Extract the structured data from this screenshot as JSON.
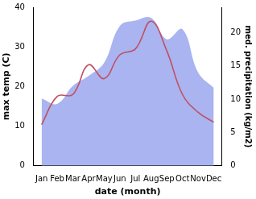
{
  "chart_data": {
    "type": "line",
    "x_label": "date (month)",
    "y_label": "max temp (C)",
    "y2_label": "med. precipitation (kg/m2)",
    "categories": [
      "Jan",
      "Feb",
      "Mar",
      "Apr",
      "May",
      "Jun",
      "Jul",
      "Aug",
      "Sep",
      "Oct",
      "Nov",
      "Dec"
    ],
    "series": [
      {
        "name": "med. precipitation",
        "type": "area",
        "axis": "y2",
        "color": "#a9b4f1",
        "values": [
          10.1,
          9.3,
          12,
          13.5,
          15.5,
          21,
          21.8,
          22.2,
          19,
          20.5,
          14,
          11.7
        ]
      },
      {
        "name": "max temp",
        "type": "line",
        "axis": "y",
        "color": "#c0505f",
        "values": [
          10.4,
          17.5,
          18,
          25.5,
          22,
          28,
          29.5,
          36.5,
          29,
          18,
          13.5,
          11
        ]
      }
    ],
    "ylim": [
      0,
      40
    ],
    "yticks": [
      0,
      10,
      20,
      30,
      40
    ],
    "y2lim": [
      0,
      23.8
    ],
    "y2ticks": [
      0,
      5,
      10,
      15,
      20
    ],
    "grid": false
  }
}
